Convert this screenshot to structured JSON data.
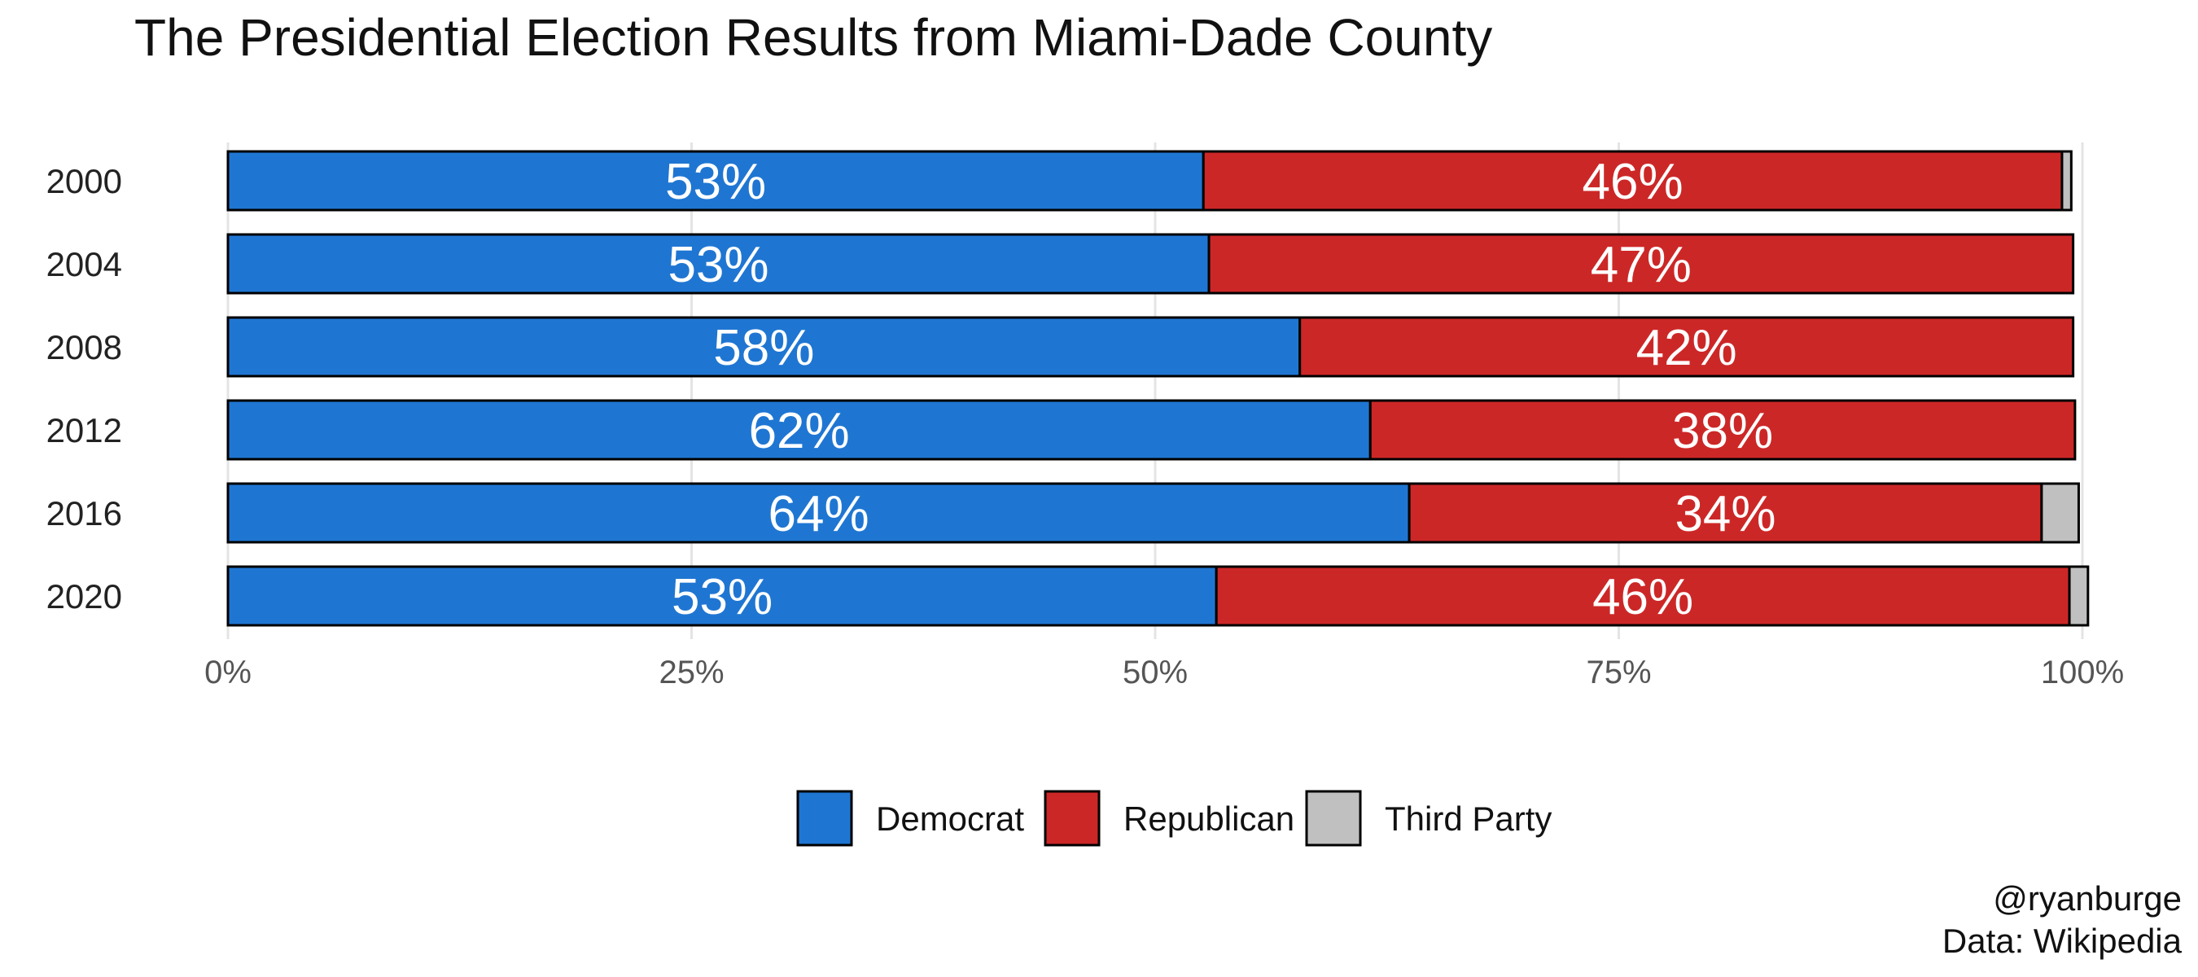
{
  "chart_data": {
    "type": "bar",
    "orientation": "horizontal",
    "stacked": true,
    "title": "The Presidential Election Results from Miami-Dade County",
    "categories": [
      "2000",
      "2004",
      "2008",
      "2012",
      "2016",
      "2020"
    ],
    "series": [
      {
        "name": "Democrat",
        "color": "#1f76d2",
        "values": [
          52.6,
          52.9,
          57.8,
          61.6,
          63.7,
          53.3
        ],
        "labels": [
          "53%",
          "53%",
          "58%",
          "62%",
          "64%",
          "53%"
        ]
      },
      {
        "name": "Republican",
        "color": "#cc2727",
        "values": [
          46.3,
          46.6,
          41.7,
          38.0,
          34.1,
          46.0
        ],
        "labels": [
          "46%",
          "47%",
          "42%",
          "38%",
          "34%",
          "46%"
        ]
      },
      {
        "name": "Third Party",
        "color": "#c0c0c0",
        "values": [
          0.5,
          0.0,
          0.0,
          0.0,
          2.0,
          1.0
        ],
        "labels": [
          "",
          "",
          "",
          "",
          "",
          ""
        ]
      }
    ],
    "xlim": [
      0,
      100
    ],
    "xticks": [
      0,
      25,
      50,
      75,
      100
    ],
    "xtick_labels": [
      "0%",
      "25%",
      "50%",
      "75%",
      "100%"
    ],
    "grid": true,
    "legend_position": "bottom",
    "caption": [
      "@ryanburge",
      "Data: Wikipedia"
    ]
  }
}
